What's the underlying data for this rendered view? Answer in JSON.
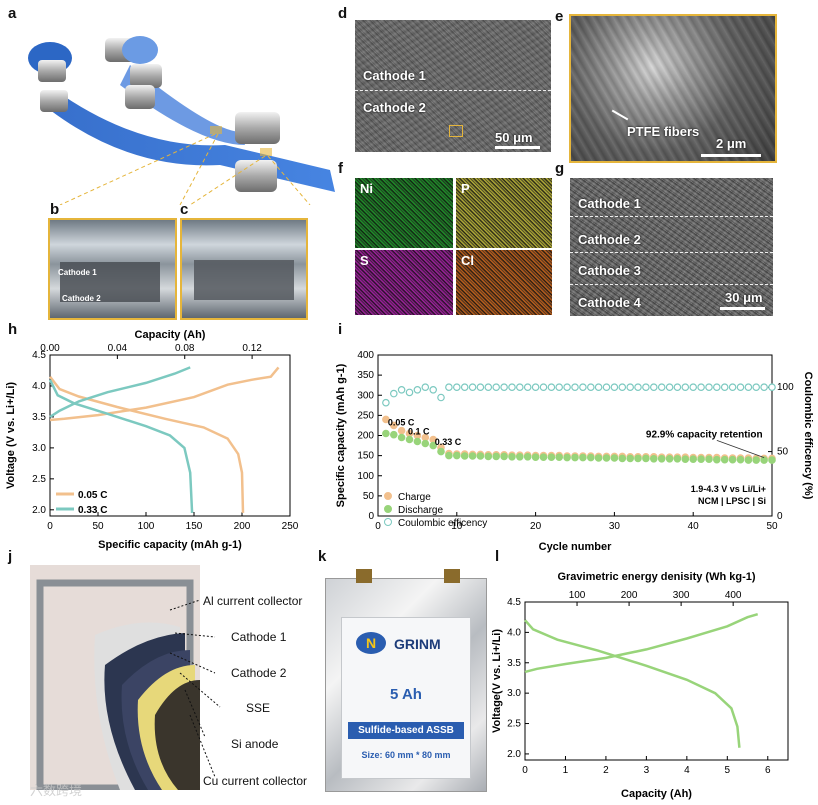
{
  "panels": {
    "a": "a",
    "b": "b",
    "c": "c",
    "d": "d",
    "e": "e",
    "f": "f",
    "g": "g",
    "h": "h",
    "i": "i",
    "j": "j",
    "k": "k",
    "l": "l"
  },
  "photo_b": {
    "label1": "Cathode 1",
    "label2": "Cathode 2"
  },
  "sem_d": {
    "layer1": "Cathode 1",
    "layer2": "Cathode 2",
    "scale": "50 μm"
  },
  "sem_e": {
    "annotation": "PTFE fibers",
    "scale": "2 μm"
  },
  "eds_f": {
    "elements": [
      "Ni",
      "P",
      "S",
      "Cl"
    ],
    "colors": [
      "#1fa12a",
      "#c9c23a",
      "#b21fb0",
      "#d56a1c"
    ]
  },
  "sem_g": {
    "layers": [
      "Cathode 1",
      "Cathode 2",
      "Cathode 3",
      "Cathode 4"
    ],
    "scale": "30 μm"
  },
  "schematic_j": {
    "labels": [
      "Al current collector",
      "Cathode 1",
      "Cathode 2",
      "SSE",
      "Si anode",
      "Cu current collector"
    ]
  },
  "pouch_k": {
    "brand": "GRINM",
    "capacity": "5 Ah",
    "type": "Sulfide-based ASSB",
    "size": "Size: 60 mm * 80 mm"
  },
  "watermark": "六数跨境",
  "chart_data": [
    {
      "id": "h",
      "type": "line",
      "xlabel": "Specific capacity (mAh g-1)",
      "ylabel": "Voltage (V vs. Li+/Li)",
      "top_xlabel": "Capacity (Ah)",
      "xlim": [
        0,
        250
      ],
      "ylim": [
        1.9,
        4.5
      ],
      "xticks": [
        0,
        50,
        100,
        150,
        200,
        250
      ],
      "yticks": [
        2.0,
        2.5,
        3.0,
        3.5,
        4.0,
        4.5
      ],
      "top_xticks": [
        "0.00",
        "0.04",
        "0.08",
        "0.12"
      ],
      "series": [
        {
          "name": "0.05 C",
          "color": "#f2c08d",
          "charge": [
            [
              0,
              3.45
            ],
            [
              15,
              3.47
            ],
            [
              50,
              3.53
            ],
            [
              100,
              3.65
            ],
            [
              150,
              3.82
            ],
            [
              185,
              4.02
            ],
            [
              210,
              4.1
            ],
            [
              230,
              4.15
            ],
            [
              238,
              4.3
            ]
          ],
          "discharge": [
            [
              0,
              4.15
            ],
            [
              10,
              3.95
            ],
            [
              30,
              3.83
            ],
            [
              70,
              3.66
            ],
            [
              120,
              3.47
            ],
            [
              160,
              3.33
            ],
            [
              185,
              3.15
            ],
            [
              196,
              2.9
            ],
            [
              200,
              2.6
            ],
            [
              201,
              1.95
            ]
          ]
        },
        {
          "name": "0.33 C",
          "color": "#7cc9c0",
          "charge": [
            [
              0,
              3.5
            ],
            [
              10,
              3.6
            ],
            [
              30,
              3.75
            ],
            [
              60,
              3.9
            ],
            [
              100,
              4.05
            ],
            [
              130,
              4.2
            ],
            [
              146,
              4.3
            ]
          ],
          "discharge": [
            [
              0,
              4.1
            ],
            [
              8,
              3.85
            ],
            [
              25,
              3.72
            ],
            [
              60,
              3.55
            ],
            [
              100,
              3.35
            ],
            [
              125,
              3.2
            ],
            [
              140,
              3.0
            ],
            [
              146,
              2.6
            ],
            [
              148,
              1.95
            ]
          ]
        }
      ]
    },
    {
      "id": "i",
      "type": "scatter",
      "xlabel": "Cycle number",
      "ylabel": "Specific capacity (mAh g-1)",
      "y2label": "Coulombic efficency (%)",
      "xlim": [
        0,
        50
      ],
      "ylim": [
        0,
        400
      ],
      "y2lim": [
        0,
        125
      ],
      "xticks": [
        0,
        10,
        20,
        30,
        40,
        50
      ],
      "yticks": [
        0,
        50,
        100,
        150,
        200,
        250,
        300,
        350,
        400
      ],
      "y2ticks": [
        0,
        50,
        100
      ],
      "annotations": [
        "0.05 C",
        "0.1 C",
        "0.33 C",
        "92.9% capacity retention",
        "1.9-4.3 V vs Li/Li+",
        "NCM | LPSC | Si"
      ],
      "series": [
        {
          "name": "Charge",
          "color": "#f2c08d",
          "values": [
            240,
            225,
            212,
            205,
            200,
            195,
            190,
            170,
            155,
            154,
            154,
            153,
            153,
            152,
            152,
            152,
            151,
            151,
            151,
            150,
            150,
            150,
            150,
            149,
            149,
            149,
            149,
            148,
            148,
            148,
            148,
            147,
            147,
            147,
            147,
            146,
            146,
            146,
            146,
            145,
            145,
            145,
            145,
            144,
            144,
            144,
            144,
            143,
            143,
            143
          ]
        },
        {
          "name": "Discharge",
          "color": "#98d47a",
          "values": [
            205,
            202,
            195,
            190,
            185,
            180,
            175,
            160,
            150,
            150,
            149,
            149,
            149,
            148,
            148,
            148,
            147,
            147,
            147,
            146,
            146,
            146,
            146,
            145,
            145,
            145,
            145,
            144,
            144,
            144,
            143,
            143,
            143,
            143,
            142,
            142,
            142,
            142,
            141,
            141,
            141,
            141,
            140,
            140,
            140,
            140,
            139,
            139,
            139,
            139
          ]
        },
        {
          "name": "Coulombic efficency",
          "color": "#7cc9c0",
          "values": [
            88,
            95,
            98,
            96,
            98,
            100,
            98,
            92,
            100,
            100,
            100,
            100,
            100,
            100,
            100,
            100,
            100,
            100,
            100,
            100,
            100,
            100,
            100,
            100,
            100,
            100,
            100,
            100,
            100,
            100,
            100,
            100,
            100,
            100,
            100,
            100,
            100,
            100,
            100,
            100,
            100,
            100,
            100,
            100,
            100,
            100,
            100,
            100,
            100,
            100
          ]
        }
      ]
    },
    {
      "id": "l",
      "type": "line",
      "xlabel": "Capacity (Ah)",
      "ylabel": "Voltage(V vs. Li+/Li)",
      "top_xlabel": "Gravimetric energy denisity (Wh kg-1)",
      "xlim": [
        0,
        6.5
      ],
      "ylim": [
        1.9,
        4.5
      ],
      "xticks": [
        0,
        1,
        2,
        3,
        4,
        5,
        6
      ],
      "yticks": [
        2.0,
        2.5,
        3.0,
        3.5,
        4.0,
        4.5
      ],
      "top_xticks": [
        100,
        200,
        300,
        400
      ],
      "series": [
        {
          "name": "charge",
          "color": "#98d47a",
          "points": [
            [
              0,
              3.35
            ],
            [
              0.3,
              3.4
            ],
            [
              1,
              3.48
            ],
            [
              2,
              3.58
            ],
            [
              3,
              3.72
            ],
            [
              4,
              3.9
            ],
            [
              5,
              4.1
            ],
            [
              5.5,
              4.25
            ],
            [
              5.75,
              4.3
            ]
          ]
        },
        {
          "name": "discharge",
          "color": "#98d47a",
          "points": [
            [
              0,
              4.2
            ],
            [
              0.2,
              4.05
            ],
            [
              0.8,
              3.88
            ],
            [
              1.8,
              3.7
            ],
            [
              3,
              3.45
            ],
            [
              4,
              3.22
            ],
            [
              4.7,
              3.0
            ],
            [
              5.1,
              2.75
            ],
            [
              5.25,
              2.45
            ],
            [
              5.3,
              2.1
            ]
          ]
        }
      ]
    }
  ]
}
